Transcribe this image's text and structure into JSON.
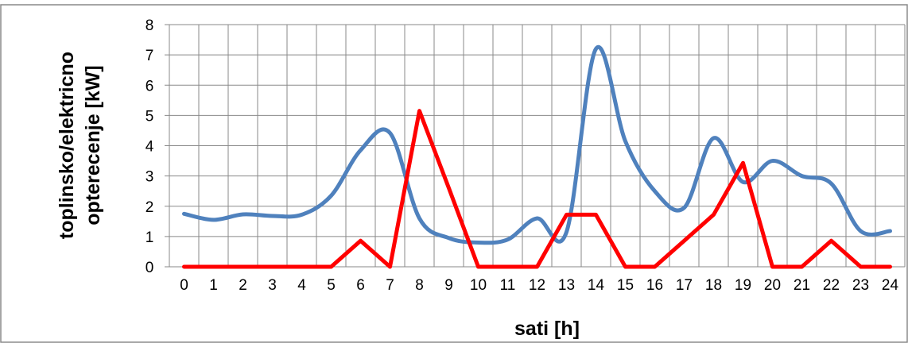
{
  "chart_data": {
    "type": "line",
    "title": "",
    "xlabel": "sati [h]",
    "ylabel_lines": [
      "toplinsko/elektricno",
      "opterecenje [kW]"
    ],
    "x": [
      0,
      1,
      2,
      3,
      4,
      5,
      6,
      7,
      8,
      9,
      10,
      11,
      12,
      13,
      14,
      15,
      16,
      17,
      18,
      19,
      20,
      21,
      22,
      23,
      24
    ],
    "xlim": [
      0,
      24
    ],
    "ylim": [
      0,
      8
    ],
    "yticks": [
      0,
      1,
      2,
      3,
      4,
      5,
      6,
      7,
      8
    ],
    "grid": true,
    "legend": "none",
    "series": [
      {
        "color": "#4f81bd",
        "smooth": true,
        "values": [
          1.75,
          1.55,
          1.73,
          1.68,
          1.72,
          2.35,
          3.85,
          4.42,
          1.6,
          0.95,
          0.8,
          0.9,
          1.6,
          1.15,
          7.2,
          4.15,
          2.5,
          1.95,
          4.25,
          2.8,
          3.5,
          3.0,
          2.75,
          1.18,
          1.18
        ]
      },
      {
        "color": "#ff0000",
        "smooth": false,
        "values": [
          0,
          0,
          0,
          0,
          0,
          0,
          0.86,
          0,
          5.15,
          2.6,
          0,
          0,
          0,
          1.72,
          1.72,
          0,
          0,
          0.86,
          1.72,
          3.43,
          0,
          0,
          0.86,
          0,
          0
        ]
      }
    ]
  }
}
